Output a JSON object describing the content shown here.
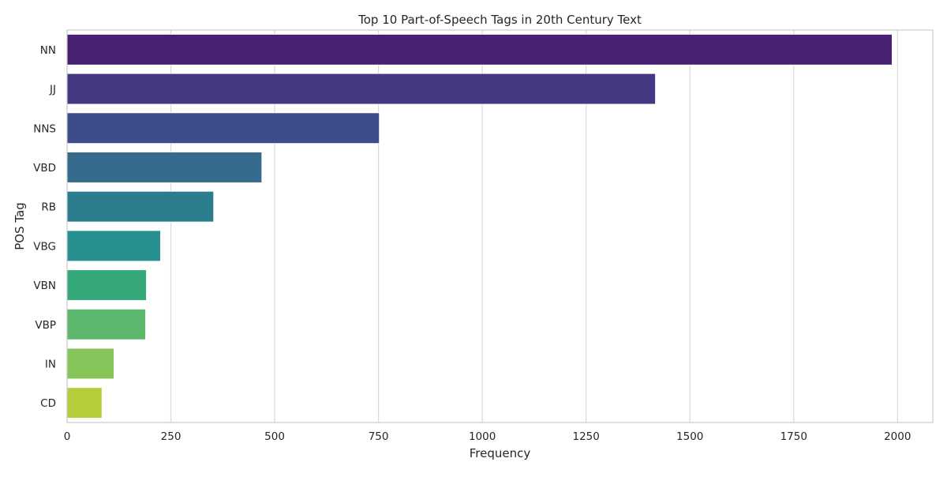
{
  "chart_data": {
    "type": "bar",
    "orientation": "horizontal",
    "title": "Top 10 Part-of-Speech Tags in 20th Century Text",
    "xlabel": "Frequency",
    "ylabel": "POS Tag",
    "categories": [
      "NN",
      "JJ",
      "NNS",
      "VBD",
      "RB",
      "VBG",
      "VBN",
      "VBP",
      "IN",
      "CD"
    ],
    "values": [
      1987,
      1417,
      752,
      469,
      353,
      225,
      191,
      189,
      113,
      84
    ],
    "xlim": [
      0,
      2085
    ],
    "xticks": [
      0,
      250,
      500,
      750,
      1000,
      1250,
      1500,
      1750,
      2000
    ],
    "grid": true,
    "legend": "none",
    "colors": [
      "#482173",
      "#453882",
      "#3e4c8a",
      "#366b8d",
      "#2b7d8e",
      "#269090",
      "#35a879",
      "#5cb86c",
      "#86c55a",
      "#b6cd3a"
    ]
  }
}
